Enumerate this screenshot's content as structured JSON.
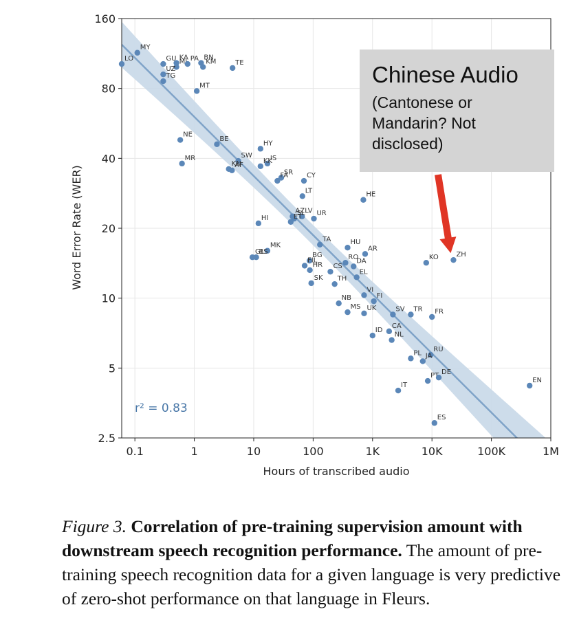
{
  "chart_data": {
    "type": "scatter",
    "xlabel": "Hours of transcribed audio",
    "ylabel": "Word Error Rate (WER)",
    "x_scale": "log",
    "y_scale": "log",
    "xlim": [
      0.06,
      1000000
    ],
    "ylim": [
      2.5,
      160
    ],
    "x_ticks": [
      {
        "value": 0.1,
        "label": "0.1"
      },
      {
        "value": 1,
        "label": "1"
      },
      {
        "value": 10,
        "label": "10"
      },
      {
        "value": 100,
        "label": "100"
      },
      {
        "value": 1000,
        "label": "1K"
      },
      {
        "value": 10000,
        "label": "10K"
      },
      {
        "value": 100000,
        "label": "100K"
      },
      {
        "value": 1000000,
        "label": "1M"
      }
    ],
    "y_ticks": [
      {
        "value": 2.5,
        "label": "2.5"
      },
      {
        "value": 5,
        "label": "5"
      },
      {
        "value": 10,
        "label": "10"
      },
      {
        "value": 20,
        "label": "20"
      },
      {
        "value": 40,
        "label": "40"
      },
      {
        "value": 80,
        "label": "80"
      },
      {
        "value": 160,
        "label": "160"
      }
    ],
    "grid": true,
    "points": [
      {
        "label": "MY",
        "x": 0.11,
        "y": 114
      },
      {
        "label": "LO",
        "x": 0.06,
        "y": 102
      },
      {
        "label": "GU",
        "x": 0.3,
        "y": 102
      },
      {
        "label": "KA",
        "x": 0.5,
        "y": 103
      },
      {
        "label": "ML",
        "x": 0.5,
        "y": 99
      },
      {
        "label": "PA",
        "x": 0.77,
        "y": 102
      },
      {
        "label": "BN",
        "x": 1.3,
        "y": 103
      },
      {
        "label": "KM",
        "x": 1.4,
        "y": 99
      },
      {
        "label": "TE",
        "x": 4.4,
        "y": 98
      },
      {
        "label": "UZ",
        "x": 0.3,
        "y": 92
      },
      {
        "label": "TG",
        "x": 0.3,
        "y": 86
      },
      {
        "label": "MT",
        "x": 1.1,
        "y": 78
      },
      {
        "label": "NE",
        "x": 0.58,
        "y": 48
      },
      {
        "label": "BE",
        "x": 2.4,
        "y": 46
      },
      {
        "label": "HY",
        "x": 13,
        "y": 44
      },
      {
        "label": "MR",
        "x": 0.62,
        "y": 38
      },
      {
        "label": "SW",
        "x": 5.5,
        "y": 39
      },
      {
        "label": "IS",
        "x": 17,
        "y": 38
      },
      {
        "label": "KN",
        "x": 3.8,
        "y": 36
      },
      {
        "label": "AF",
        "x": 4.3,
        "y": 35.5
      },
      {
        "label": "KK",
        "x": 13,
        "y": 37
      },
      {
        "label": "SR",
        "x": 29,
        "y": 33
      },
      {
        "label": "FA",
        "x": 25,
        "y": 32
      },
      {
        "label": "CY",
        "x": 70,
        "y": 32
      },
      {
        "label": "LT",
        "x": 66,
        "y": 27.5
      },
      {
        "label": "HE",
        "x": 700,
        "y": 26.5
      },
      {
        "label": "AZ",
        "x": 45,
        "y": 22.5
      },
      {
        "label": "LV",
        "x": 65,
        "y": 22.5
      },
      {
        "label": "SL",
        "x": 48,
        "y": 22
      },
      {
        "label": "ET",
        "x": 42,
        "y": 21.3
      },
      {
        "label": "UR",
        "x": 103,
        "y": 22
      },
      {
        "label": "HI",
        "x": 12,
        "y": 21
      },
      {
        "label": "TA",
        "x": 130,
        "y": 17
      },
      {
        "label": "HU",
        "x": 380,
        "y": 16.5
      },
      {
        "label": "AR",
        "x": 750,
        "y": 15.5
      },
      {
        "label": "MK",
        "x": 17,
        "y": 16
      },
      {
        "label": "GL",
        "x": 9.5,
        "y": 15
      },
      {
        "label": "BS",
        "x": 11,
        "y": 15
      },
      {
        "label": "BG",
        "x": 87,
        "y": 14.5
      },
      {
        "label": "RO",
        "x": 350,
        "y": 14.2
      },
      {
        "label": "DA",
        "x": 480,
        "y": 13.7
      },
      {
        "label": "KO",
        "x": 8000,
        "y": 14.2
      },
      {
        "label": "ZH",
        "x": 23000,
        "y": 14.6
      },
      {
        "label": "FIL",
        "x": 72,
        "y": 13.8
      },
      {
        "label": "HR",
        "x": 88,
        "y": 13.2
      },
      {
        "label": "CS",
        "x": 195,
        "y": 13
      },
      {
        "label": "EL",
        "x": 540,
        "y": 12.3
      },
      {
        "label": "SK",
        "x": 93,
        "y": 11.6
      },
      {
        "label": "TH",
        "x": 230,
        "y": 11.5
      },
      {
        "label": "VI",
        "x": 720,
        "y": 10.3
      },
      {
        "label": "FI",
        "x": 1050,
        "y": 9.7
      },
      {
        "label": "NB",
        "x": 270,
        "y": 9.5
      },
      {
        "label": "MS",
        "x": 380,
        "y": 8.7
      },
      {
        "label": "UK",
        "x": 720,
        "y": 8.6
      },
      {
        "label": "SV",
        "x": 2200,
        "y": 8.5
      },
      {
        "label": "TR",
        "x": 4400,
        "y": 8.5
      },
      {
        "label": "FR",
        "x": 10000,
        "y": 8.3
      },
      {
        "label": "CA",
        "x": 1900,
        "y": 7.2
      },
      {
        "label": "ID",
        "x": 1000,
        "y": 6.9
      },
      {
        "label": "NL",
        "x": 2100,
        "y": 6.6
      },
      {
        "label": "RU",
        "x": 9500,
        "y": 5.7
      },
      {
        "label": "PL",
        "x": 4400,
        "y": 5.5
      },
      {
        "label": "JA",
        "x": 7000,
        "y": 5.35
      },
      {
        "label": "PT",
        "x": 8500,
        "y": 4.4
      },
      {
        "label": "DE",
        "x": 13000,
        "y": 4.55
      },
      {
        "label": "EN",
        "x": 440000,
        "y": 4.2
      },
      {
        "label": "IT",
        "x": 2700,
        "y": 4.0
      },
      {
        "label": "ES",
        "x": 11000,
        "y": 2.9
      }
    ],
    "annotations": [
      {
        "type": "text",
        "text": "r² = 0.83"
      }
    ],
    "point_color": "#5b87b8",
    "fit_color": "#7fa3c8",
    "band_color": "#c8d8e8"
  },
  "callout": {
    "title": "Chinese Audio",
    "body": "(Cantonese or Mandarin? Not disclosed)",
    "arrow_color": "#e03525",
    "box_color": "#d4d4d4"
  },
  "caption": {
    "fig": "Figure 3.",
    "bold": "Correlation of pre-training supervision amount with downstream speech recognition performance.",
    "rest": "The amount of pre-training speech recognition data for a given language is very predictive of zero-shot performance on that language in Fleurs."
  }
}
